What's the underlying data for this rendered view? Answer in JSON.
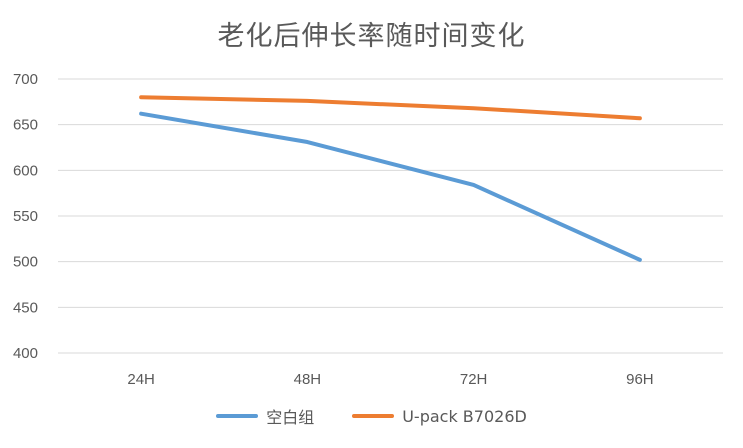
{
  "chart_data": {
    "type": "line",
    "title": "老化后伸长率随时间变化",
    "categories": [
      "24H",
      "48H",
      "72H",
      "96H"
    ],
    "y_ticks": [
      "700",
      "650",
      "600",
      "550",
      "500",
      "450",
      "400"
    ],
    "ylim": [
      400,
      700
    ],
    "grid": true,
    "legend_position": "bottom",
    "series": [
      {
        "name": "空白组",
        "color": "#5b9bd5",
        "values": [
          662,
          631,
          584,
          502
        ]
      },
      {
        "name": "U-pack B7026D",
        "color": "#ed7d31",
        "values": [
          680,
          676,
          668,
          657
        ]
      }
    ]
  }
}
